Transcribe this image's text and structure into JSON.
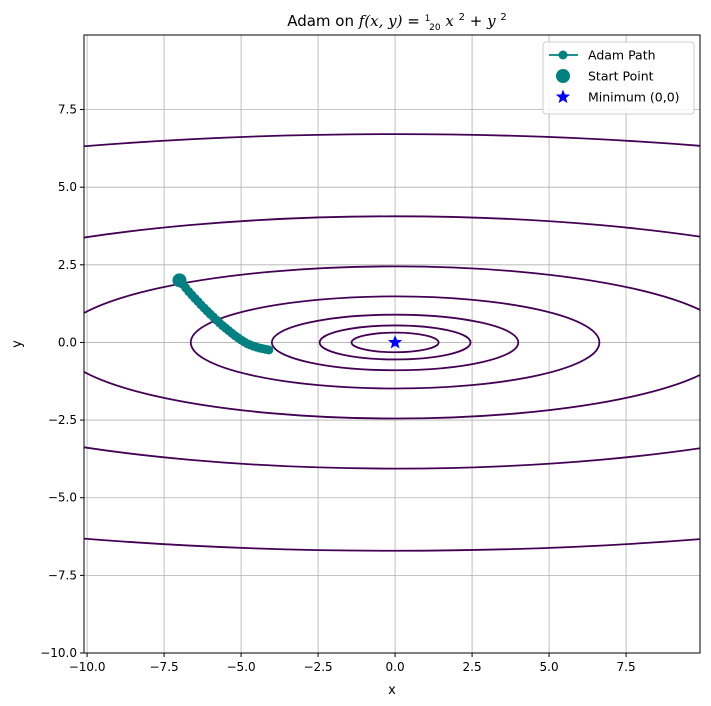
{
  "chart_data": {
    "type": "line",
    "title": {
      "prefix": "Adam on ",
      "lhs": "f(x, y)",
      "eq": " = ",
      "num": "1",
      "den": "20",
      "term1": "x",
      "sup1": "2",
      "plus": " + ",
      "term2": "y",
      "sup2": "2"
    },
    "xlabel": "x",
    "ylabel": "y",
    "xlim": [
      -10.1,
      9.9
    ],
    "ylim": [
      -10.0,
      9.9
    ],
    "xticks": [
      -10.0,
      -7.5,
      -5.0,
      -2.5,
      0.0,
      2.5,
      5.0,
      7.5
    ],
    "yticks": [
      -10.0,
      -7.5,
      -5.0,
      -2.5,
      0.0,
      2.5,
      5.0,
      7.5
    ],
    "xtick_labels": [
      "−10.0",
      "−7.5",
      "−5.0",
      "−2.5",
      "0.0",
      "2.5",
      "5.0",
      "7.5"
    ],
    "ytick_labels": [
      "−10.0",
      "−7.5",
      "−5.0",
      "−2.5",
      "0.0",
      "2.5",
      "5.0",
      "7.5"
    ],
    "grid": true,
    "contour_levels": [
      0.1,
      0.3,
      0.8,
      2.2,
      6.0,
      16.5,
      45.0
    ],
    "contour_color": "#440154",
    "series": [
      {
        "name": "Adam Path",
        "color": "#008080",
        "marker": "circle",
        "points": [
          [
            -7.0,
            2.0
          ],
          [
            -6.9,
            1.88
          ],
          [
            -6.8,
            1.76
          ],
          [
            -6.7,
            1.64
          ],
          [
            -6.6,
            1.53
          ],
          [
            -6.5,
            1.42
          ],
          [
            -6.4,
            1.32
          ],
          [
            -6.3,
            1.21
          ],
          [
            -6.2,
            1.11
          ],
          [
            -6.1,
            1.01
          ],
          [
            -6.0,
            0.91
          ],
          [
            -5.9,
            0.82
          ],
          [
            -5.8,
            0.72
          ],
          [
            -5.7,
            0.63
          ],
          [
            -5.6,
            0.54
          ],
          [
            -5.5,
            0.46
          ],
          [
            -5.4,
            0.38
          ],
          [
            -5.3,
            0.3
          ],
          [
            -5.2,
            0.22
          ],
          [
            -5.1,
            0.15
          ],
          [
            -5.0,
            0.08
          ],
          [
            -4.9,
            0.02
          ],
          [
            -4.8,
            -0.04
          ],
          [
            -4.7,
            -0.08
          ],
          [
            -4.6,
            -0.12
          ],
          [
            -4.5,
            -0.15
          ],
          [
            -4.4,
            -0.18
          ],
          [
            -4.3,
            -0.2
          ],
          [
            -4.2,
            -0.22
          ],
          [
            -4.1,
            -0.24
          ]
        ]
      },
      {
        "name": "Start Point",
        "color": "#008080",
        "marker": "circle-large",
        "points": [
          [
            -7.0,
            2.0
          ]
        ]
      },
      {
        "name": "Minimum (0,0)",
        "color": "#0000ff",
        "marker": "star",
        "points": [
          [
            0.0,
            0.0
          ]
        ]
      }
    ],
    "legend": {
      "position": "top-right",
      "entries": [
        "Adam Path",
        "Start Point",
        "Minimum (0,0)"
      ]
    }
  }
}
